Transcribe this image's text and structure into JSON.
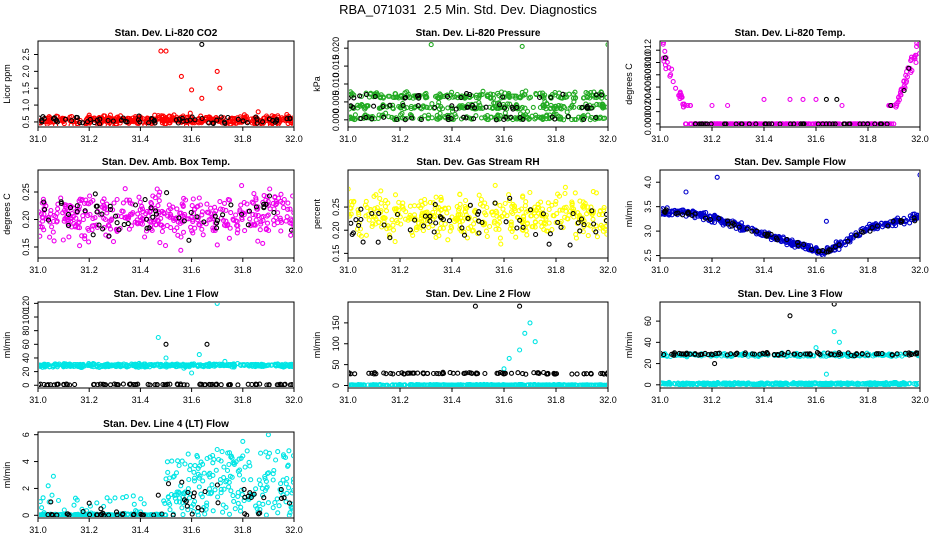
{
  "figure": {
    "title": "RBA_071031  2.5 Min. Std. Dev. Diagnostics"
  },
  "chart_data": [
    {
      "id": "p1",
      "type": "scatter",
      "title": "Stan. Dev. Li-820 CO2",
      "ylabel": "Licor ppm",
      "xlim": [
        31.0,
        32.0
      ],
      "ylim": [
        0.35,
        2.9
      ],
      "xticks": [
        "31.0",
        "31.2",
        "31.4",
        "31.6",
        "31.8",
        "32.0"
      ],
      "yticks": [
        "0.5",
        "1.0",
        "1.5",
        "2.0",
        "2.5"
      ],
      "series": [
        {
          "name": "main",
          "color": "#ff0000",
          "gen": {
            "base": 0.55,
            "noise": 0.12,
            "n": 420,
            "seed": 11
          },
          "extra": [
            [
              31.48,
              2.6
            ],
            [
              31.5,
              2.6
            ],
            [
              31.56,
              1.85
            ],
            [
              31.6,
              1.45
            ],
            [
              31.64,
              1.2
            ],
            [
              31.7,
              2.0
            ],
            [
              31.71,
              1.5
            ],
            [
              31.86,
              0.8
            ],
            [
              31.2,
              0.7
            ]
          ]
        },
        {
          "name": "reference",
          "color": "#000000",
          "gen": {
            "base": 0.55,
            "noise": 0.1,
            "n": 70,
            "seed": 12
          },
          "extra": [
            [
              31.64,
              2.8
            ]
          ]
        }
      ]
    },
    {
      "id": "p2",
      "type": "scatter",
      "title": "Stan. Dev. Li-820 Pressure",
      "ylabel": "kPa",
      "xlim": [
        31.0,
        32.0
      ],
      "ylim": [
        -0.002,
        0.022
      ],
      "xticks": [
        "31.0",
        "31.2",
        "31.4",
        "31.6",
        "31.8",
        "32.0"
      ],
      "yticks": [
        "0.000",
        "0.005",
        "0.010",
        "0.015",
        "0.020"
      ],
      "series": [
        {
          "name": "main",
          "color": "#22aa22",
          "gen": {
            "levels": [
              0.0,
              0.003,
              0.006
            ],
            "jitter": 0.0015,
            "n": 520,
            "seed": 21
          },
          "extra": [
            [
              31.32,
              0.021
            ],
            [
              31.67,
              0.0205
            ],
            [
              32.0,
              0.021
            ]
          ]
        },
        {
          "name": "reference",
          "color": "#000000",
          "gen": {
            "levels": [
              0.0,
              0.003,
              0.006
            ],
            "jitter": 0.001,
            "n": 70,
            "seed": 22
          },
          "extra": []
        }
      ]
    },
    {
      "id": "p3",
      "type": "scatter",
      "title": "Stan. Dev. Li-820 Temp.",
      "ylabel": "degrees C",
      "xlim": [
        31.0,
        32.0
      ],
      "ylim": [
        -0.0005,
        0.0135
      ],
      "xticks": [
        "31.0",
        "31.2",
        "31.4",
        "31.6",
        "31.8",
        "32.0"
      ],
      "yticks": [
        "0.000",
        "0.002",
        "0.004",
        "0.006",
        "0.008",
        "0.010",
        "0.012"
      ],
      "series": [
        {
          "name": "main",
          "color": "#ee00ee",
          "gen": {
            "vshape": [
              31.12,
              31.88,
              0.013
            ],
            "n": 380,
            "seed": 31
          },
          "extra": [
            [
              31.2,
              0.003
            ],
            [
              31.26,
              0.003
            ],
            [
              31.4,
              0.004
            ],
            [
              31.5,
              0.004
            ],
            [
              31.55,
              0.004
            ],
            [
              31.6,
              0.004
            ],
            [
              31.7,
              0.003
            ]
          ]
        },
        {
          "name": "reference",
          "color": "#000000",
          "gen": {
            "vshape": [
              31.12,
              31.88,
              0.013
            ],
            "n": 50,
            "seed": 32
          },
          "extra": [
            [
              31.64,
              0.004
            ],
            [
              31.68,
              0.004
            ]
          ]
        }
      ]
    },
    {
      "id": "p4",
      "type": "scatter",
      "title": "Stan. Dev. Amb. Box Temp.",
      "ylabel": "degrees C",
      "xlim": [
        31.0,
        32.0
      ],
      "ylim": [
        0.13,
        0.29
      ],
      "xticks": [
        "31.0",
        "31.2",
        "31.4",
        "31.6",
        "31.8",
        "32.0"
      ],
      "yticks": [
        "0.15",
        "0.20",
        "0.25"
      ],
      "series": [
        {
          "name": "main",
          "color": "#ee00ee",
          "gen": {
            "base": 0.205,
            "noise": 0.035,
            "n": 420,
            "seed": 41
          },
          "extra": []
        },
        {
          "name": "reference",
          "color": "#000000",
          "gen": {
            "base": 0.205,
            "noise": 0.03,
            "n": 60,
            "seed": 42
          },
          "extra": []
        }
      ]
    },
    {
      "id": "p5",
      "type": "scatter",
      "title": "Stan. Dev. Gas Stream RH",
      "ylabel": "percent",
      "xlim": [
        31.0,
        32.0
      ],
      "ylim": [
        0.14,
        0.33
      ],
      "xticks": [
        "31.0",
        "31.2",
        "31.4",
        "31.6",
        "31.8",
        "32.0"
      ],
      "yticks": [
        "0.15",
        "0.20",
        "0.25"
      ],
      "series": [
        {
          "name": "main",
          "color": "#ffff00",
          "gen": {
            "base": 0.23,
            "noise": 0.04,
            "n": 420,
            "seed": 51
          },
          "extra": []
        },
        {
          "name": "reference",
          "color": "#000000",
          "gen": {
            "base": 0.22,
            "noise": 0.035,
            "n": 60,
            "seed": 52
          },
          "extra": []
        }
      ]
    },
    {
      "id": "p6",
      "type": "scatter",
      "title": "Stan. Dev. Sample Flow",
      "ylabel": "ml/min",
      "xlim": [
        31.0,
        32.0
      ],
      "ylim": [
        2.45,
        4.25
      ],
      "xticks": [
        "31.0",
        "31.2",
        "31.4",
        "31.6",
        "31.8",
        "32.0"
      ],
      "yticks": [
        "2.5",
        "3.0",
        "3.5",
        "4.0"
      ],
      "series": [
        {
          "name": "main",
          "color": "#0000cc",
          "gen": {
            "curve": [
              [
                31.0,
                3.4
              ],
              [
                31.15,
                3.35
              ],
              [
                31.3,
                3.1
              ],
              [
                31.45,
                2.85
              ],
              [
                31.55,
                2.7
              ],
              [
                31.62,
                2.55
              ],
              [
                31.7,
                2.75
              ],
              [
                31.8,
                3.05
              ],
              [
                32.0,
                3.3
              ]
            ],
            "noise": 0.06,
            "n": 400,
            "seed": 61
          },
          "extra": [
            [
              31.22,
              4.1
            ],
            [
              32.0,
              4.15
            ],
            [
              31.64,
              3.2
            ],
            [
              31.1,
              3.8
            ]
          ]
        },
        {
          "name": "reference",
          "color": "#000000",
          "gen": {
            "curve": [
              [
                31.0,
                3.4
              ],
              [
                31.15,
                3.35
              ],
              [
                31.3,
                3.1
              ],
              [
                31.45,
                2.85
              ],
              [
                31.55,
                2.7
              ],
              [
                31.62,
                2.55
              ],
              [
                31.7,
                2.75
              ],
              [
                31.8,
                3.05
              ],
              [
                32.0,
                3.3
              ]
            ],
            "noise": 0.05,
            "n": 60,
            "seed": 62
          },
          "extra": []
        }
      ]
    },
    {
      "id": "p7",
      "type": "scatter",
      "title": "Stan. Dev. Line 1 Flow",
      "ylabel": "ml/min",
      "xlim": [
        31.0,
        32.0
      ],
      "ylim": [
        -4,
        122
      ],
      "xticks": [
        "31.0",
        "31.2",
        "31.4",
        "31.6",
        "31.8",
        "32.0"
      ],
      "yticks": [
        "0",
        "20",
        "40",
        "60",
        "80",
        "100",
        "120"
      ],
      "series": [
        {
          "name": "main",
          "color": "#00e5e5",
          "gen": {
            "base": 29,
            "noise": 2,
            "n": 420,
            "seed": 71
          },
          "extra": [
            [
              31.47,
              70
            ],
            [
              31.5,
              40
            ],
            [
              31.57,
              25
            ],
            [
              31.6,
              18
            ],
            [
              31.63,
              45
            ],
            [
              31.67,
              28
            ],
            [
              31.7,
              120
            ],
            [
              31.73,
              35
            ]
          ]
        },
        {
          "name": "reference",
          "color": "#000000",
          "gen": {
            "base": 1,
            "noise": 0.8,
            "n": 90,
            "seed": 72
          },
          "extra": [
            [
              31.5,
              60
            ],
            [
              31.66,
              60
            ]
          ]
        }
      ]
    },
    {
      "id": "p8",
      "type": "scatter",
      "title": "Stan. Dev. Line 2 Flow",
      "ylabel": "ml/min",
      "xlim": [
        31.0,
        32.0
      ],
      "ylim": [
        -6,
        200
      ],
      "xticks": [
        "31.0",
        "31.2",
        "31.4",
        "31.6",
        "31.8",
        "32.0"
      ],
      "yticks": [
        "0",
        "50",
        "100",
        "150"
      ],
      "series": [
        {
          "name": "main",
          "color": "#00e5e5",
          "gen": {
            "base": 1,
            "noise": 1,
            "n": 420,
            "seed": 81
          },
          "extra": [
            [
              31.6,
              40
            ],
            [
              31.62,
              65
            ],
            [
              31.66,
              85
            ],
            [
              31.68,
              125
            ],
            [
              31.7,
              150
            ],
            [
              31.72,
              105
            ]
          ]
        },
        {
          "name": "reference",
          "color": "#000000",
          "gen": {
            "base": 29,
            "noise": 1.5,
            "n": 90,
            "seed": 82
          },
          "extra": [
            [
              31.49,
              190
            ],
            [
              31.66,
              190
            ]
          ]
        }
      ]
    },
    {
      "id": "p9",
      "type": "scatter",
      "title": "Stan. Dev. Line 3 Flow",
      "ylabel": "ml/min",
      "xlim": [
        31.0,
        32.0
      ],
      "ylim": [
        -3,
        78
      ],
      "xticks": [
        "31.0",
        "31.2",
        "31.4",
        "31.6",
        "31.8",
        "32.0"
      ],
      "yticks": [
        "0",
        "20",
        "40",
        "60"
      ],
      "series": [
        {
          "name": "main",
          "color": "#00e5e5",
          "gen": {
            "base": 1,
            "noise": 0.8,
            "n": 420,
            "seed": 91
          },
          "extra": [
            [
              31.6,
              35
            ],
            [
              31.63,
              30
            ],
            [
              31.67,
              50
            ],
            [
              31.69,
              40
            ],
            [
              31.64,
              10
            ]
          ]
        },
        {
          "name": "reference",
          "color": "#000000",
          "gen": {
            "base": 29,
            "noise": 1.2,
            "n": 90,
            "seed": 92
          },
          "extra": [
            [
              31.5,
              65
            ],
            [
              31.67,
              76
            ],
            [
              31.21,
              20
            ]
          ]
        },
        {
          "name": "main-upper",
          "color": "#00e5e5",
          "gen": {
            "base": 28,
            "noise": 1.2,
            "n": 200,
            "seed": 93
          },
          "extra": []
        }
      ]
    },
    {
      "id": "p10",
      "type": "scatter",
      "title": "Stan. Dev. Line 4 (LT) Flow",
      "ylabel": "ml/min",
      "xlim": [
        31.0,
        32.0
      ],
      "ylim": [
        -0.2,
        6.2
      ],
      "xticks": [
        "31.0",
        "31.2",
        "31.4",
        "31.6",
        "31.8",
        "32.0"
      ],
      "yticks": [
        "0",
        "2",
        "4",
        "6"
      ],
      "series": [
        {
          "name": "main",
          "color": "#00e5e5",
          "gen": {
            "burst": [
              31.5,
              32.0,
              1.5,
              4.8
            ],
            "n": 420,
            "seed": 101
          },
          "extra": [
            [
              31.02,
              1.3
            ],
            [
              31.04,
              2.2
            ],
            [
              31.06,
              2.9
            ],
            [
              31.08,
              1.1
            ],
            [
              31.7,
              4.9
            ],
            [
              31.8,
              5.5
            ],
            [
              31.9,
              6.0
            ],
            [
              31.98,
              4.8
            ]
          ]
        },
        {
          "name": "reference",
          "color": "#000000",
          "gen": {
            "burst": [
              31.5,
              32.0,
              0.5,
              2.5
            ],
            "n": 60,
            "seed": 102
          },
          "extra": [
            [
              31.05,
              1.0
            ],
            [
              31.2,
              0.9
            ],
            [
              31.47,
              1.5
            ]
          ]
        }
      ]
    }
  ]
}
